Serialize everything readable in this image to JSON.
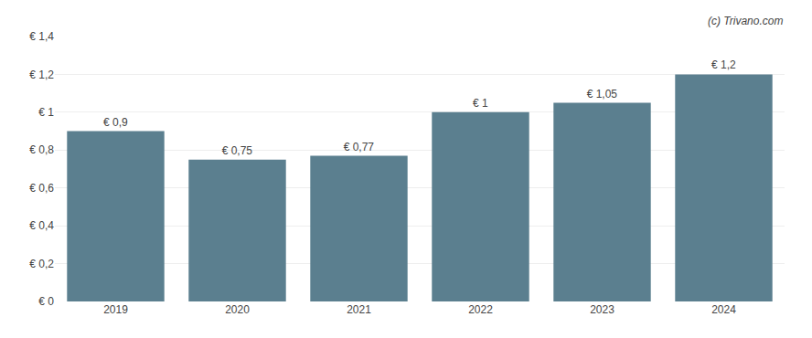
{
  "chart_data": {
    "type": "bar",
    "categories": [
      "2019",
      "2020",
      "2021",
      "2022",
      "2023",
      "2024"
    ],
    "values": [
      0.9,
      0.75,
      0.77,
      1.0,
      1.05,
      1.2
    ],
    "value_labels": [
      "€ 0,9",
      "€ 0,75",
      "€ 0,77",
      "€ 1",
      "€ 1,05",
      "€ 1,2"
    ],
    "data_labels": true,
    "color": "#5b7f8f",
    "ylim": [
      0,
      1.4
    ],
    "yticks": [
      {
        "value": 0,
        "label": "€ 0"
      },
      {
        "value": 0.2,
        "label": "€ 0,2"
      },
      {
        "value": 0.4,
        "label": "€ 0,4"
      },
      {
        "value": 0.6,
        "label": "€ 0,6"
      },
      {
        "value": 0.8,
        "label": "€ 0,8"
      },
      {
        "value": 1.0,
        "label": "€ 1"
      },
      {
        "value": 1.2,
        "label": "€ 1,2"
      },
      {
        "value": 1.4,
        "label": "€ 1,4"
      }
    ],
    "grid": true,
    "annotation": "(c) Trivano.com"
  }
}
